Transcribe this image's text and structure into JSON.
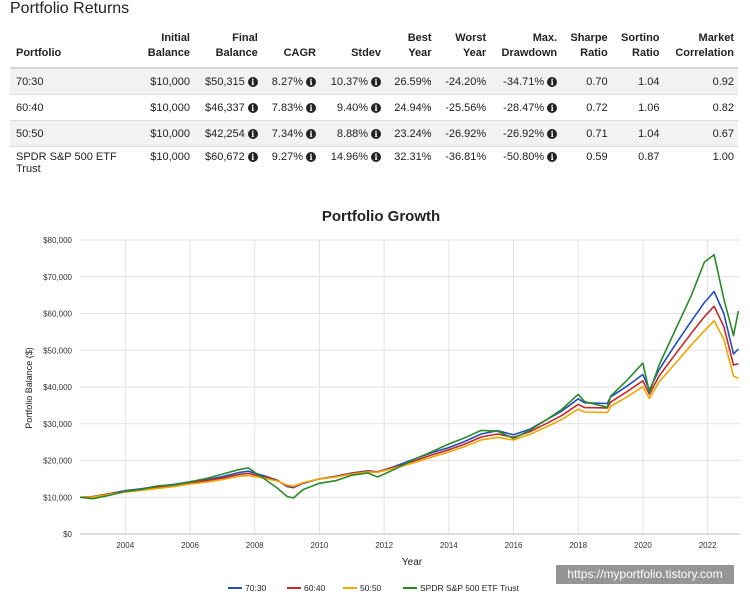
{
  "returns_section": {
    "title": "Portfolio Returns",
    "headers": [
      {
        "l1": "",
        "l2": "Portfolio"
      },
      {
        "l1": "Initial",
        "l2": "Balance"
      },
      {
        "l1": "Final",
        "l2": "Balance"
      },
      {
        "l1": "",
        "l2": "CAGR"
      },
      {
        "l1": "",
        "l2": "Stdev"
      },
      {
        "l1": "Best",
        "l2": "Year"
      },
      {
        "l1": "Worst",
        "l2": "Year"
      },
      {
        "l1": "Max.",
        "l2": "Drawdown"
      },
      {
        "l1": "Sharpe",
        "l2": "Ratio"
      },
      {
        "l1": "Sortino",
        "l2": "Ratio"
      },
      {
        "l1": "Market",
        "l2": "Correlation"
      }
    ],
    "rows": [
      {
        "name": "70:30",
        "initial": "$10,000",
        "final": "$50,315",
        "cagr": "8.27%",
        "stdev": "10.37%",
        "best": "26.59%",
        "worst": "-24.20%",
        "drawdown": "-34.71%",
        "sharpe": "0.70",
        "sortino": "1.04",
        "corr": "0.92"
      },
      {
        "name": "60:40",
        "initial": "$10,000",
        "final": "$46,337",
        "cagr": "7.83%",
        "stdev": "9.40%",
        "best": "24.94%",
        "worst": "-25.56%",
        "drawdown": "-28.47%",
        "sharpe": "0.72",
        "sortino": "1.06",
        "corr": "0.82"
      },
      {
        "name": "50:50",
        "initial": "$10,000",
        "final": "$42,254",
        "cagr": "7.34%",
        "stdev": "8.88%",
        "best": "23.24%",
        "worst": "-26.92%",
        "drawdown": "-26.92%",
        "sharpe": "0.71",
        "sortino": "1.04",
        "corr": "0.67"
      },
      {
        "name": "SPDR S&P 500 ETF Trust",
        "initial": "$10,000",
        "final": "$60,672",
        "cagr": "9.27%",
        "stdev": "14.96%",
        "best": "32.31%",
        "worst": "-36.81%",
        "drawdown": "-50.80%",
        "sharpe": "0.59",
        "sortino": "0.87",
        "corr": "1.00"
      }
    ],
    "info_icon": "info-circle-icon"
  },
  "watermark": "https://myportfolio.tistory.com",
  "chart_data": {
    "type": "line",
    "title": "Portfolio Growth",
    "xlabel": "Year",
    "ylabel": "Portfolio Balance ($)",
    "xlim": [
      2002.6,
      2023.0
    ],
    "ylim": [
      0,
      80000
    ],
    "x_ticks": [
      "2004",
      "2006",
      "2008",
      "2010",
      "2012",
      "2014",
      "2016",
      "2018",
      "2020",
      "2022"
    ],
    "y_ticks": [
      "$0",
      "$10,000",
      "$20,000",
      "$30,000",
      "$40,000",
      "$50,000",
      "$60,000",
      "$70,000",
      "$80,000"
    ],
    "grid": true,
    "legend_position": "bottom",
    "x": [
      2002.6,
      2003.0,
      2003.5,
      2004.0,
      2004.5,
      2005.0,
      2005.5,
      2006.0,
      2006.5,
      2007.0,
      2007.5,
      2007.8,
      2008.3,
      2008.7,
      2009.0,
      2009.2,
      2009.5,
      2010.0,
      2010.5,
      2011.0,
      2011.5,
      2011.8,
      2012.3,
      2013.0,
      2013.5,
      2014.0,
      2014.5,
      2015.0,
      2015.5,
      2016.0,
      2016.5,
      2017.0,
      2017.5,
      2018.0,
      2018.2,
      2018.9,
      2019.0,
      2019.5,
      2020.0,
      2020.2,
      2020.5,
      2021.0,
      2021.5,
      2021.9,
      2022.2,
      2022.5,
      2022.8,
      2022.95
    ],
    "series": [
      {
        "name": "70:30",
        "color": "#1f4fbf",
        "values": [
          10000,
          10200,
          11000,
          11800,
          12300,
          13000,
          13500,
          14200,
          14800,
          15600,
          16700,
          17100,
          15800,
          14600,
          12900,
          12600,
          13800,
          15000,
          15700,
          16600,
          17200,
          16900,
          18300,
          20600,
          22200,
          23500,
          25200,
          27200,
          28100,
          27000,
          28500,
          31000,
          33500,
          36800,
          35700,
          35500,
          37300,
          40200,
          43400,
          39200,
          44700,
          51500,
          58000,
          63000,
          66000,
          60000,
          49000,
          50300
        ]
      },
      {
        "name": "60:40",
        "color": "#c62828",
        "values": [
          10000,
          10150,
          10900,
          11600,
          12100,
          12700,
          13200,
          13900,
          14500,
          15200,
          16200,
          16500,
          15500,
          14500,
          13100,
          12800,
          13900,
          15000,
          15600,
          16500,
          17100,
          16900,
          18100,
          20100,
          21600,
          22900,
          24500,
          26400,
          27200,
          26300,
          27800,
          30000,
          32300,
          35300,
          34400,
          34300,
          35900,
          38700,
          41700,
          38000,
          43000,
          48900,
          54700,
          59100,
          62000,
          56500,
          46000,
          46300
        ]
      },
      {
        "name": "50:50",
        "color": "#f0a500",
        "values": [
          10000,
          10100,
          10800,
          11400,
          11900,
          12400,
          12900,
          13600,
          14100,
          14800,
          15700,
          15900,
          15200,
          14400,
          13300,
          13000,
          14000,
          15000,
          15500,
          16300,
          16900,
          16800,
          17900,
          19600,
          21000,
          22300,
          23800,
          25600,
          26300,
          25600,
          27100,
          29100,
          31200,
          34000,
          33200,
          33100,
          34700,
          37300,
          40100,
          36900,
          41400,
          46400,
          51500,
          55300,
          58000,
          53000,
          43000,
          42300
        ]
      },
      {
        "name": "SPDR S&P 500 ETF Trust",
        "color": "#2a8a2a",
        "values": [
          10000,
          9600,
          10500,
          11600,
          12100,
          13100,
          13300,
          14200,
          15100,
          16300,
          17500,
          18000,
          15000,
          12500,
          10200,
          9800,
          12100,
          13800,
          14500,
          16000,
          16600,
          15500,
          17500,
          20600,
          22500,
          24500,
          26200,
          28200,
          28000,
          26000,
          28200,
          31000,
          34000,
          38000,
          36000,
          34500,
          37500,
          41800,
          46500,
          38500,
          46000,
          55500,
          65000,
          74000,
          76000,
          64000,
          54000,
          60672
        ]
      }
    ]
  }
}
